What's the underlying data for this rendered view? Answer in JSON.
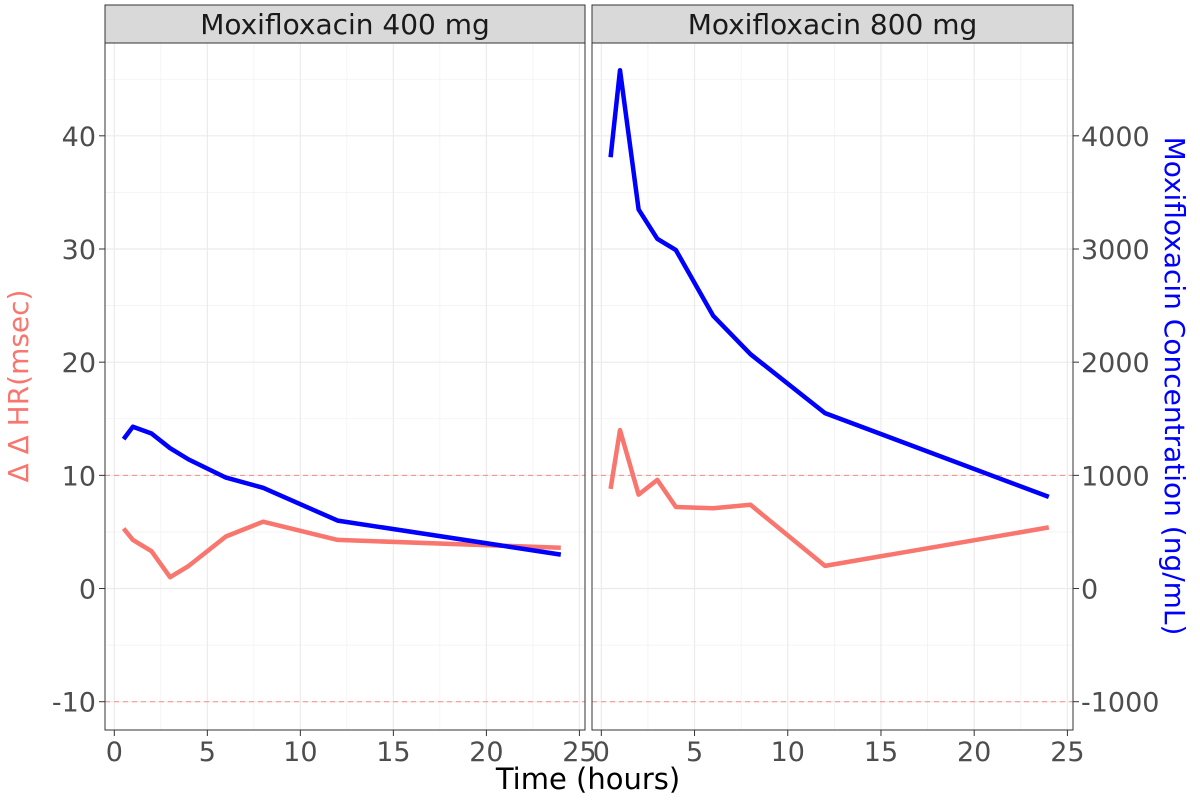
{
  "chart_data": {
    "type": "line",
    "xlabel": "Time (hours)",
    "ylabel_left": "Δ Δ HR(msec)",
    "ylabel_right": "Moxifloxacin Concentration (ng/mL)",
    "x_ticks": [
      "0",
      "5",
      "10",
      "15",
      "20",
      "25"
    ],
    "y_ticks_left": [
      "-10",
      "0",
      "10",
      "20",
      "30",
      "40"
    ],
    "y_ticks_right": [
      "-1000",
      "0",
      "1000",
      "2000",
      "3000",
      "4000"
    ],
    "xlim": [
      -0.5,
      25.3
    ],
    "ylim_left": [
      -12.5,
      48.2
    ],
    "ylim_right": [
      -1250,
      4820
    ],
    "reference_lines_left": [
      10,
      -10
    ],
    "grid": true,
    "colors": {
      "hr": "#f8766d",
      "concentration": "#0000ff",
      "reference": "#f8766d",
      "strip_bg": "#d9d9d9",
      "grid": "#ebebeb"
    },
    "panels": [
      {
        "title": "Moxifloxacin 400 mg",
        "series": [
          {
            "key": "hr",
            "axis": "left",
            "x": [
              0.5,
              1,
              2,
              3,
              4,
              6,
              8,
              12,
              24
            ],
            "y": [
              5.3,
              4.3,
              3.3,
              1.0,
              2.0,
              4.6,
              5.9,
              4.3,
              3.6
            ]
          },
          {
            "key": "concentration",
            "axis": "right",
            "x": [
              0.5,
              1,
              2,
              3,
              4,
              6,
              8,
              12,
              24
            ],
            "y": [
              1320,
              1430,
              1370,
              1240,
              1140,
              980,
              890,
              600,
              300
            ]
          }
        ]
      },
      {
        "title": "Moxifloxacin 800 mg",
        "series": [
          {
            "key": "hr",
            "axis": "left",
            "x": [
              0.5,
              1,
              2,
              3,
              4,
              6,
              8,
              12,
              24
            ],
            "y": [
              8.8,
              14.0,
              8.3,
              9.6,
              7.2,
              7.1,
              7.4,
              2.0,
              5.4
            ]
          },
          {
            "key": "concentration",
            "axis": "right",
            "x": [
              0.5,
              1,
              2,
              3,
              4,
              6,
              8,
              12,
              24
            ],
            "y": [
              3810,
              4580,
              3350,
              3090,
              2990,
              2410,
              2070,
              1550,
              810
            ]
          }
        ]
      }
    ]
  }
}
